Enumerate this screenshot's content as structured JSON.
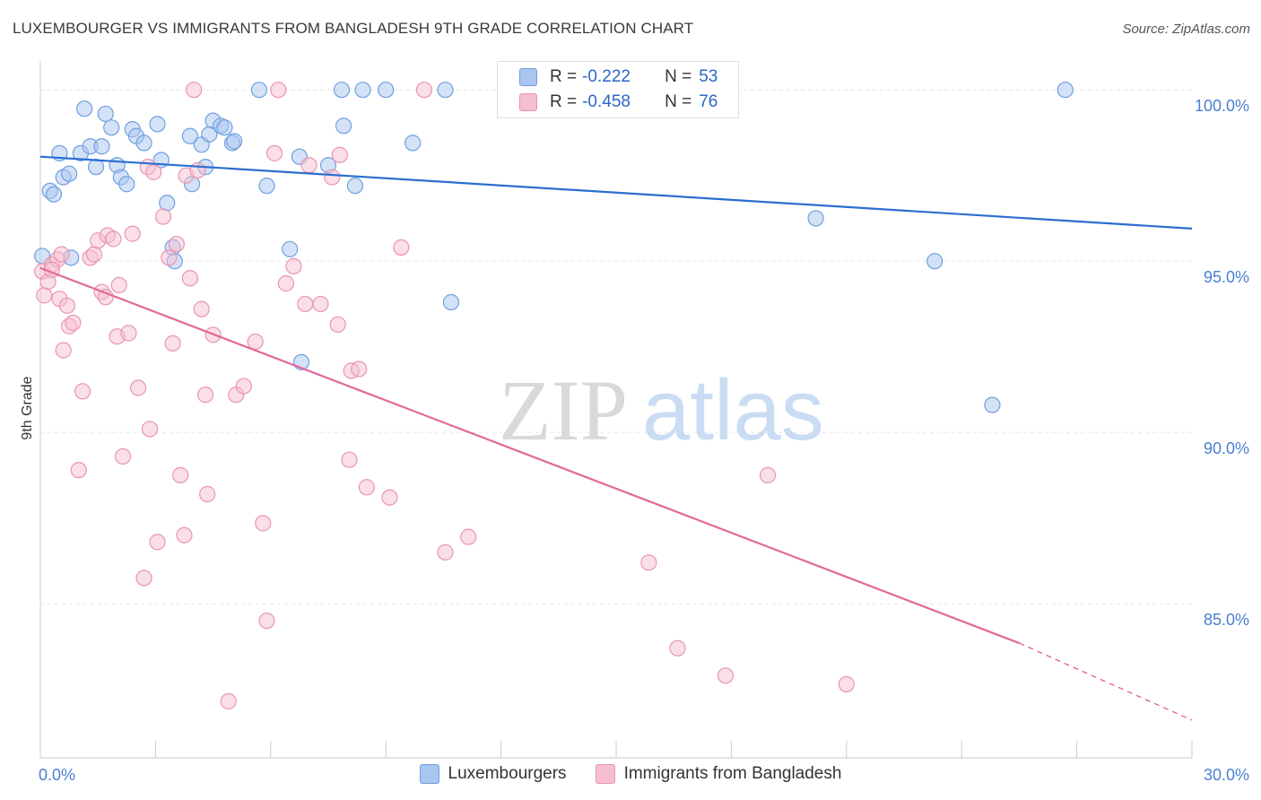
{
  "chart_data": {
    "type": "scatter",
    "title": "LUXEMBOURGER VS IMMIGRANTS FROM BANGLADESH 9TH GRADE CORRELATION CHART",
    "source": "Source: ZipAtlas.com",
    "xlabel": "",
    "ylabel": "9th Grade",
    "xlim": [
      0,
      30
    ],
    "ylim": [
      80.5,
      101.0
    ],
    "x_tick_labels": [
      "0.0%",
      "30.0%"
    ],
    "y_ticks": [
      85,
      90,
      95,
      100
    ],
    "y_tick_labels": [
      "85.0%",
      "90.0%",
      "95.0%",
      "100.0%"
    ],
    "grid": true,
    "watermark": {
      "zip": "ZIP",
      "atlas": "atlas"
    },
    "legend_labels": {
      "r": "R =",
      "n": "N ="
    },
    "series": [
      {
        "name": "Luxembourgers",
        "color": "#6f9fe0",
        "fill": "#a9c6f0",
        "line_color": "#2a6ed1",
        "R": "-0.222",
        "N": "53",
        "trend": {
          "x": [
            0,
            30
          ],
          "y": [
            98.05,
            95.95
          ]
        },
        "points": [
          [
            0.05,
            95.15
          ],
          [
            0.25,
            97.05
          ],
          [
            0.35,
            96.95
          ],
          [
            0.5,
            98.15
          ],
          [
            0.6,
            97.45
          ],
          [
            0.75,
            97.55
          ],
          [
            0.8,
            95.1
          ],
          [
            1.05,
            98.15
          ],
          [
            1.15,
            99.45
          ],
          [
            1.3,
            98.35
          ],
          [
            1.45,
            97.75
          ],
          [
            1.6,
            98.35
          ],
          [
            1.7,
            99.3
          ],
          [
            1.85,
            98.9
          ],
          [
            2.0,
            97.8
          ],
          [
            2.1,
            97.45
          ],
          [
            2.25,
            97.25
          ],
          [
            2.4,
            98.85
          ],
          [
            2.5,
            98.65
          ],
          [
            2.7,
            98.45
          ],
          [
            3.05,
            99.0
          ],
          [
            3.15,
            97.95
          ],
          [
            3.3,
            96.7
          ],
          [
            3.45,
            95.4
          ],
          [
            3.5,
            95.0
          ],
          [
            3.9,
            98.65
          ],
          [
            3.95,
            97.25
          ],
          [
            4.2,
            98.4
          ],
          [
            4.3,
            97.75
          ],
          [
            4.4,
            98.7
          ],
          [
            4.5,
            99.1
          ],
          [
            4.7,
            98.95
          ],
          [
            4.8,
            98.9
          ],
          [
            5.0,
            98.45
          ],
          [
            5.05,
            98.5
          ],
          [
            5.7,
            100.0
          ],
          [
            5.9,
            97.2
          ],
          [
            6.5,
            95.35
          ],
          [
            6.75,
            98.05
          ],
          [
            6.8,
            92.05
          ],
          [
            7.5,
            97.8
          ],
          [
            7.85,
            100.0
          ],
          [
            7.9,
            98.95
          ],
          [
            8.2,
            97.2
          ],
          [
            8.4,
            100.0
          ],
          [
            9.0,
            100.0
          ],
          [
            9.7,
            98.45
          ],
          [
            10.55,
            100.0
          ],
          [
            10.7,
            93.8
          ],
          [
            20.2,
            96.25
          ],
          [
            23.3,
            95.0
          ],
          [
            24.8,
            90.8
          ],
          [
            26.7,
            100.0
          ]
        ]
      },
      {
        "name": "Immigrants from Bangladesh",
        "color": "#ea94b0",
        "fill": "#f5bfd0",
        "line_color": "#e2689a",
        "R": "-0.458",
        "N": "76",
        "trend": {
          "x": [
            0,
            25.5
          ],
          "y": [
            94.8,
            83.85
          ]
        },
        "trend_dashed": {
          "x": [
            25.5,
            30
          ],
          "y": [
            83.85,
            81.6
          ]
        },
        "points": [
          [
            0.05,
            94.7
          ],
          [
            0.1,
            94.0
          ],
          [
            0.2,
            94.4
          ],
          [
            0.3,
            94.9
          ],
          [
            0.45,
            95.05
          ],
          [
            0.5,
            93.9
          ],
          [
            0.55,
            95.2
          ],
          [
            0.6,
            92.4
          ],
          [
            0.7,
            93.7
          ],
          [
            0.75,
            93.1
          ],
          [
            0.85,
            93.2
          ],
          [
            1.0,
            88.9
          ],
          [
            1.1,
            91.2
          ],
          [
            1.3,
            95.1
          ],
          [
            1.4,
            95.2
          ],
          [
            1.5,
            95.6
          ],
          [
            1.6,
            94.1
          ],
          [
            1.7,
            93.95
          ],
          [
            1.75,
            95.75
          ],
          [
            1.9,
            95.65
          ],
          [
            2.0,
            92.8
          ],
          [
            2.05,
            94.3
          ],
          [
            2.15,
            89.3
          ],
          [
            2.3,
            92.9
          ],
          [
            2.4,
            95.8
          ],
          [
            2.55,
            91.3
          ],
          [
            2.7,
            85.75
          ],
          [
            2.8,
            97.75
          ],
          [
            2.85,
            90.1
          ],
          [
            2.95,
            97.6
          ],
          [
            3.05,
            86.8
          ],
          [
            3.2,
            96.3
          ],
          [
            3.35,
            95.1
          ],
          [
            3.45,
            92.6
          ],
          [
            3.55,
            95.5
          ],
          [
            3.65,
            88.75
          ],
          [
            3.75,
            87.0
          ],
          [
            3.8,
            97.5
          ],
          [
            3.9,
            94.5
          ],
          [
            4.0,
            100.0
          ],
          [
            4.1,
            97.65
          ],
          [
            4.2,
            93.6
          ],
          [
            4.3,
            91.1
          ],
          [
            4.35,
            88.2
          ],
          [
            4.5,
            92.85
          ],
          [
            4.9,
            82.15
          ],
          [
            5.1,
            91.1
          ],
          [
            5.3,
            91.35
          ],
          [
            5.6,
            92.65
          ],
          [
            5.8,
            87.35
          ],
          [
            5.9,
            84.5
          ],
          [
            6.1,
            98.15
          ],
          [
            6.2,
            100.0
          ],
          [
            6.4,
            94.35
          ],
          [
            6.6,
            94.85
          ],
          [
            6.9,
            93.75
          ],
          [
            7.0,
            97.8
          ],
          [
            7.3,
            93.75
          ],
          [
            7.6,
            97.45
          ],
          [
            7.75,
            93.15
          ],
          [
            7.8,
            98.1
          ],
          [
            8.05,
            89.2
          ],
          [
            8.1,
            91.8
          ],
          [
            8.3,
            91.85
          ],
          [
            8.5,
            88.4
          ],
          [
            9.1,
            88.1
          ],
          [
            9.4,
            95.4
          ],
          [
            10.0,
            100.0
          ],
          [
            10.55,
            86.5
          ],
          [
            11.15,
            86.95
          ],
          [
            15.85,
            86.2
          ],
          [
            16.6,
            83.7
          ],
          [
            17.85,
            82.9
          ],
          [
            18.95,
            88.75
          ],
          [
            21.0,
            82.65
          ],
          [
            0.3,
            94.75
          ]
        ]
      }
    ]
  }
}
